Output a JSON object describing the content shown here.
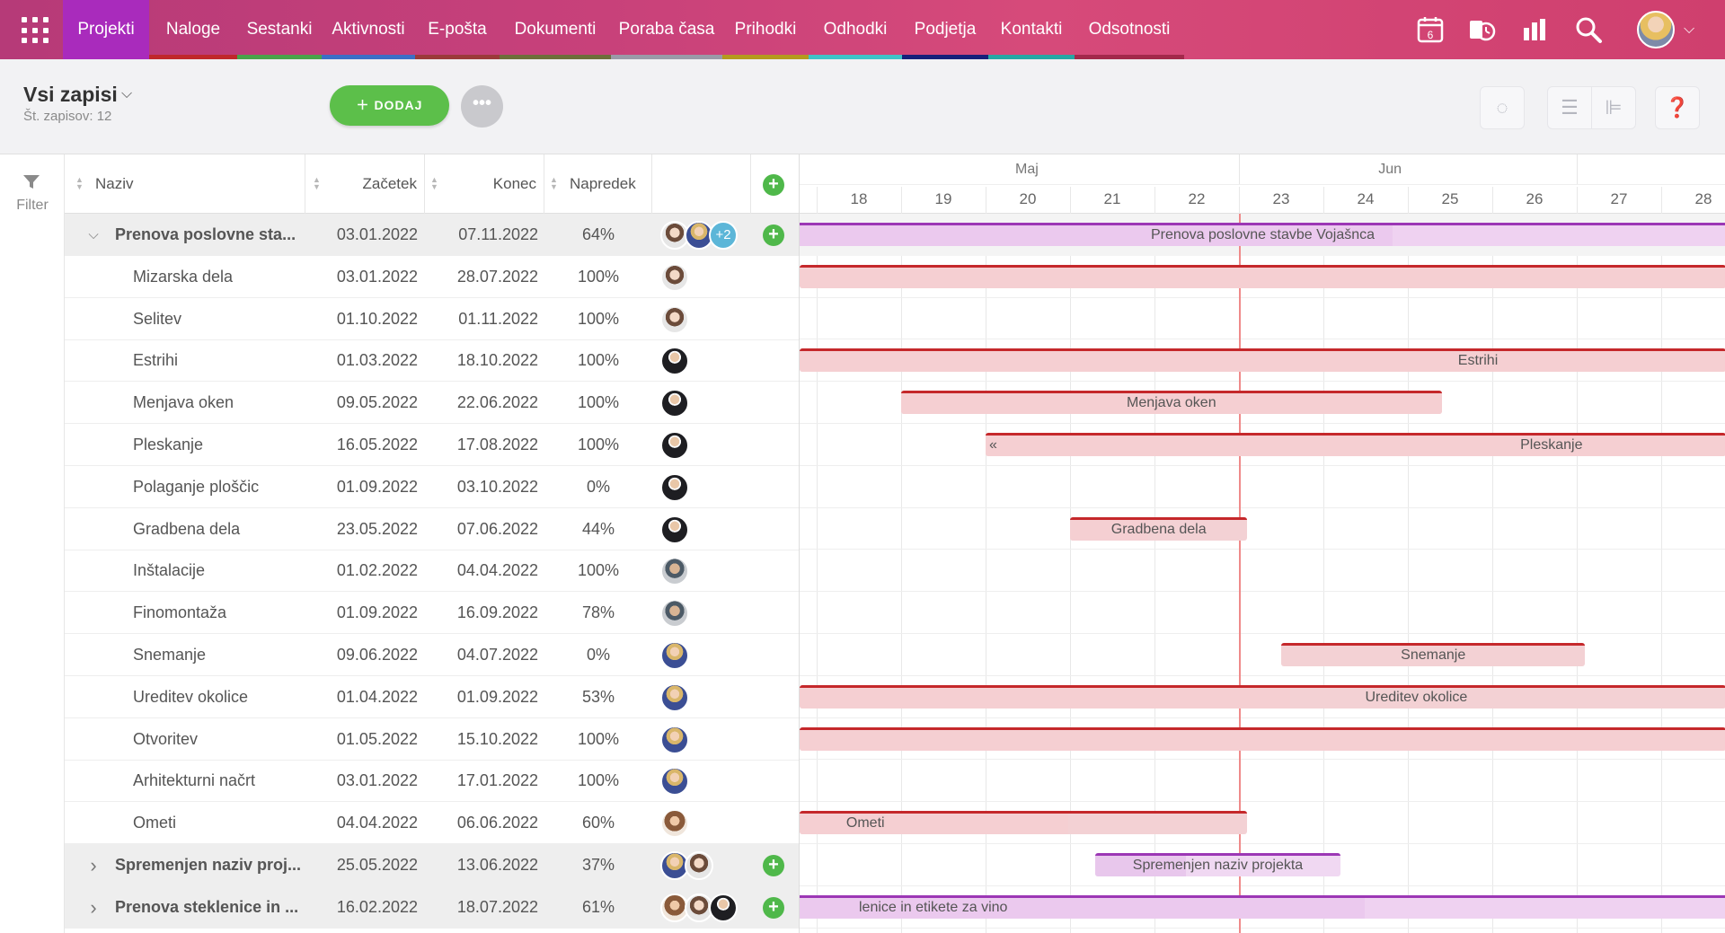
{
  "nav": {
    "items": [
      {
        "label": "Projekti",
        "active": true,
        "color": "#a92bbc"
      },
      {
        "label": "Naloge",
        "color": "#c0282b"
      },
      {
        "label": "Sestanki",
        "color": "#4aa34a"
      },
      {
        "label": "Aktivnosti",
        "color": "#3b6fc6"
      },
      {
        "label": "E-pošta",
        "color": "#9b3a3a"
      },
      {
        "label": "Dokumenti",
        "color": "#6e6e3a"
      },
      {
        "label": "Poraba časa",
        "color": "#9a9aa8"
      },
      {
        "label": "Prihodki",
        "color": "#b59a1e"
      },
      {
        "label": "Odhodki",
        "color": "#3fc3c8"
      },
      {
        "label": "Podjetja",
        "color": "#16207a"
      },
      {
        "label": "Kontakti",
        "color": "#26a7a4"
      },
      {
        "label": "Odsotnosti",
        "color": "#a3294b"
      }
    ],
    "calendar_day": "6",
    "icons": [
      "calendar-icon",
      "time-tracking-icon",
      "reports-icon",
      "search-icon"
    ]
  },
  "toolbar": {
    "title": "Vsi zapisi",
    "count": "Št. zapisov: 12",
    "add_label": "DODAJ",
    "zoom": 0.33
  },
  "filter": {
    "label": "Filter"
  },
  "columns": {
    "name": "Naziv",
    "start": "Začetek",
    "end": "Konec",
    "progress": "Napredek"
  },
  "rows": [
    {
      "name": "Prenova poslovne sta...",
      "start": "03.01.2022",
      "end": "07.11.2022",
      "progress": "64%",
      "group": true,
      "expanded": true,
      "avatars": [
        "f1",
        "f2"
      ],
      "more": "+2",
      "plus": true
    },
    {
      "name": "Mizarska dela",
      "start": "03.01.2022",
      "end": "28.07.2022",
      "progress": "100%",
      "avatars": [
        "f1"
      ]
    },
    {
      "name": "Selitev",
      "start": "01.10.2022",
      "end": "01.11.2022",
      "progress": "100%",
      "avatars": [
        "f1"
      ]
    },
    {
      "name": "Estrihi",
      "start": "01.03.2022",
      "end": "18.10.2022",
      "progress": "100%",
      "avatars": [
        "m1"
      ]
    },
    {
      "name": "Menjava oken",
      "start": "09.05.2022",
      "end": "22.06.2022",
      "progress": "100%",
      "avatars": [
        "m1"
      ]
    },
    {
      "name": "Pleskanje",
      "start": "16.05.2022",
      "end": "17.08.2022",
      "progress": "100%",
      "avatars": [
        "m1"
      ]
    },
    {
      "name": "Polaganje ploščic",
      "start": "01.09.2022",
      "end": "03.10.2022",
      "progress": "0%",
      "avatars": [
        "m1"
      ]
    },
    {
      "name": "Gradbena dela",
      "start": "23.05.2022",
      "end": "07.06.2022",
      "progress": "44%",
      "avatars": [
        "m1"
      ]
    },
    {
      "name": "Inštalacije",
      "start": "01.02.2022",
      "end": "04.04.2022",
      "progress": "100%",
      "avatars": [
        "m2"
      ]
    },
    {
      "name": "Finomontaža",
      "start": "01.09.2022",
      "end": "16.09.2022",
      "progress": "78%",
      "avatars": [
        "m2"
      ]
    },
    {
      "name": "Snemanje",
      "start": "09.06.2022",
      "end": "04.07.2022",
      "progress": "0%",
      "avatars": [
        "f2"
      ]
    },
    {
      "name": "Ureditev okolice",
      "start": "01.04.2022",
      "end": "01.09.2022",
      "progress": "53%",
      "avatars": [
        "f2"
      ]
    },
    {
      "name": "Otvoritev",
      "start": "01.05.2022",
      "end": "15.10.2022",
      "progress": "100%",
      "avatars": [
        "f2"
      ]
    },
    {
      "name": "Arhitekturni načrt",
      "start": "03.01.2022",
      "end": "17.01.2022",
      "progress": "100%",
      "avatars": [
        "f2"
      ]
    },
    {
      "name": "Ometi",
      "start": "04.04.2022",
      "end": "06.06.2022",
      "progress": "60%",
      "avatars": [
        "f3"
      ]
    },
    {
      "name": "Spremenjen naziv proj...",
      "start": "25.05.2022",
      "end": "13.06.2022",
      "progress": "37%",
      "group": true,
      "expanded": false,
      "avatars": [
        "f2",
        "f1"
      ],
      "plus": true
    },
    {
      "name": "Prenova steklenice in ...",
      "start": "16.02.2022",
      "end": "18.07.2022",
      "progress": "61%",
      "group": true,
      "expanded": false,
      "avatars": [
        "f3",
        "f1",
        "m1"
      ],
      "plus": true
    }
  ],
  "gantt": {
    "months": [
      {
        "label": "Maj",
        "day": 20
      },
      {
        "label": "Jun",
        "day": 24.3
      }
    ],
    "days": [
      "18",
      "19",
      "20",
      "21",
      "22",
      "23",
      "24",
      "25",
      "26",
      "27",
      "28"
    ],
    "today": 22.5,
    "bars": [
      {
        "row": 0,
        "from": 17.2,
        "to": 28.5,
        "label": "Prenova poslovne stavbe Vojašnca",
        "kind": "group",
        "progress": 0.64
      },
      {
        "row": 1,
        "from": 17.2,
        "to": 28.5,
        "label": "",
        "kind": "task",
        "progress": 1
      },
      {
        "row": 3,
        "from": 17.2,
        "to": 28.5,
        "label": "Estrihi",
        "kind": "task",
        "progress": 1,
        "label_at": 25.33
      },
      {
        "row": 4,
        "from": 18.5,
        "to": 24.9,
        "label": "Menjava oken",
        "kind": "task",
        "progress": 1
      },
      {
        "row": 5,
        "from": 19.5,
        "to": 28.5,
        "label": "Pleskanje",
        "kind": "task",
        "progress": 1,
        "label_at": 26.2,
        "marker": "«"
      },
      {
        "row": 7,
        "from": 20.5,
        "to": 22.6,
        "label": "Gradbena dela",
        "kind": "task",
        "progress": 0.44
      },
      {
        "row": 10,
        "from": 23.0,
        "to": 26.6,
        "label": "Snemanje",
        "kind": "task",
        "progress": 0
      },
      {
        "row": 11,
        "from": 17.2,
        "to": 28.5,
        "label": "Ureditev okolice",
        "kind": "task",
        "progress": 0.53,
        "label_at": 24.6
      },
      {
        "row": 12,
        "from": 17.3,
        "to": 28.5,
        "label": "",
        "kind": "task",
        "progress": 1
      },
      {
        "row": 14,
        "from": 17.2,
        "to": 22.6,
        "label": "Ometi",
        "kind": "task",
        "progress": 0.6,
        "label_at": 17.85
      },
      {
        "row": 15,
        "from": 20.8,
        "to": 23.7,
        "label": "Spremenjen naziv projekta",
        "kind": "summ",
        "progress": 0.37
      },
      {
        "row": 16,
        "from": 17.2,
        "to": 28.5,
        "label": "lenice in etikete za vino",
        "kind": "group",
        "progress": 0.61,
        "label_at": 18.0
      }
    ]
  }
}
